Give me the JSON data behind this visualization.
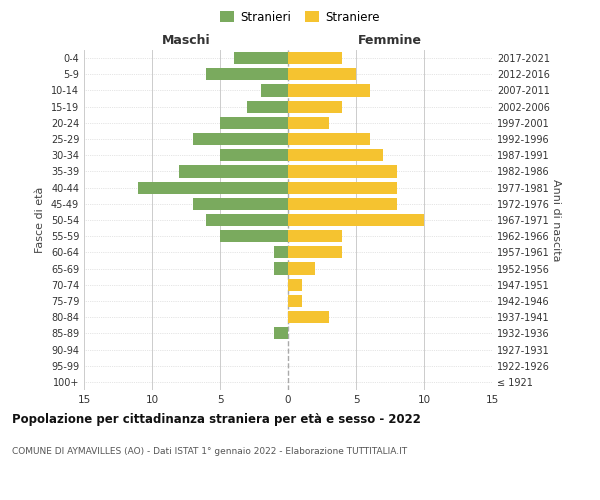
{
  "age_groups": [
    "100+",
    "95-99",
    "90-94",
    "85-89",
    "80-84",
    "75-79",
    "70-74",
    "65-69",
    "60-64",
    "55-59",
    "50-54",
    "45-49",
    "40-44",
    "35-39",
    "30-34",
    "25-29",
    "20-24",
    "15-19",
    "10-14",
    "5-9",
    "0-4"
  ],
  "birth_years": [
    "≤ 1921",
    "1922-1926",
    "1927-1931",
    "1932-1936",
    "1937-1941",
    "1942-1946",
    "1947-1951",
    "1952-1956",
    "1957-1961",
    "1962-1966",
    "1967-1971",
    "1972-1976",
    "1977-1981",
    "1982-1986",
    "1987-1991",
    "1992-1996",
    "1997-2001",
    "2002-2006",
    "2007-2011",
    "2012-2016",
    "2017-2021"
  ],
  "maschi": [
    0,
    0,
    0,
    1,
    0,
    0,
    0,
    1,
    1,
    5,
    6,
    7,
    11,
    8,
    5,
    7,
    5,
    3,
    2,
    6,
    4
  ],
  "femmine": [
    0,
    0,
    0,
    0,
    3,
    1,
    1,
    2,
    4,
    4,
    10,
    8,
    8,
    8,
    7,
    6,
    3,
    4,
    6,
    5,
    4
  ],
  "color_maschi": "#7aaa5e",
  "color_femmine": "#f5c330",
  "xlim": 15,
  "title": "Popolazione per cittadinanza straniera per età e sesso - 2022",
  "subtitle": "COMUNE DI AYMAVILLES (AO) - Dati ISTAT 1° gennaio 2022 - Elaborazione TUTTITALIA.IT",
  "ylabel_left": "Fasce di età",
  "ylabel_right": "Anni di nascita",
  "xlabel_left": "Maschi",
  "xlabel_right": "Femmine",
  "legend_maschi": "Stranieri",
  "legend_femmine": "Straniere",
  "background_color": "#ffffff",
  "grid_color": "#cccccc"
}
